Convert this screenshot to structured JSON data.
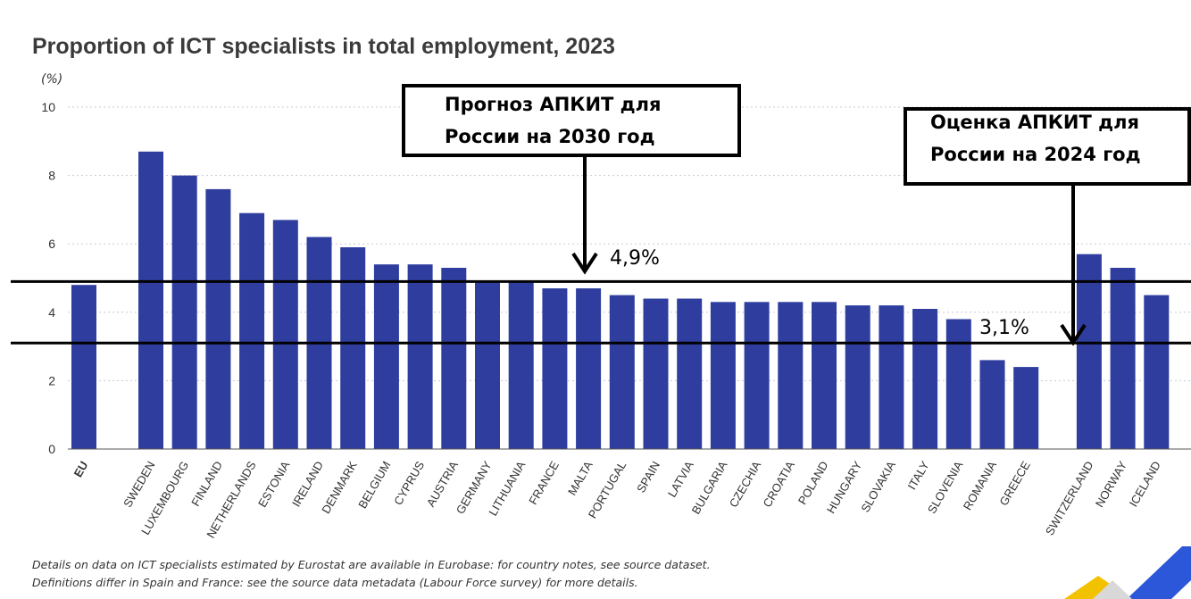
{
  "chart_data": {
    "type": "bar",
    "title": "Proportion of ICT specialists in total employment, 2023",
    "unit_label": "(%)",
    "ylim": [
      0,
      10
    ],
    "yticks": [
      0,
      2,
      4,
      6,
      8,
      10
    ],
    "grid": true,
    "categories": [
      "EU",
      "SWEDEN",
      "LUXEMBOURG",
      "FINLAND",
      "NETHERLANDS",
      "ESTONIA",
      "IRELAND",
      "DENMARK",
      "BELGIUM",
      "CYPRUS",
      "AUSTRIA",
      "GERMANY",
      "LITHUANIA",
      "FRANCE",
      "MALTA",
      "PORTUGAL",
      "SPAIN",
      "LATVIA",
      "BULGARIA",
      "CZECHIA",
      "CROATIA",
      "POLAND",
      "HUNGARY",
      "SLOVAKIA",
      "ITALY",
      "SLOVENIA",
      "ROMANIA",
      "GREECE",
      "SWITZERLAND",
      "NORWAY",
      "ICELAND"
    ],
    "values": [
      4.8,
      8.7,
      8.0,
      7.6,
      6.9,
      6.7,
      6.2,
      5.9,
      5.4,
      5.4,
      5.3,
      4.9,
      4.9,
      4.7,
      4.7,
      4.5,
      4.4,
      4.4,
      4.3,
      4.3,
      4.3,
      4.3,
      4.2,
      4.2,
      4.1,
      3.8,
      2.6,
      2.4,
      5.7,
      5.3,
      4.5
    ],
    "groups": [
      1,
      27,
      3
    ],
    "bar_color": "#2e3d9e",
    "annotations": [
      {
        "lines": [
          "Прогноз АПКИТ для",
          "России на 2030 год"
        ],
        "value": 4.9,
        "value_label": "4,9%"
      },
      {
        "lines": [
          "Оценка АПКИТ для",
          "России на 2024 год"
        ],
        "value": 3.1,
        "value_label": "3,1%"
      }
    ],
    "footnotes": [
      "Details on data on ICT specialists estimated by Eurostat are available in Eurobase: for country notes, see source dataset.",
      "Definitions differ in Spain and France: see the source data metadata (Labour Force survey) for more details."
    ]
  }
}
